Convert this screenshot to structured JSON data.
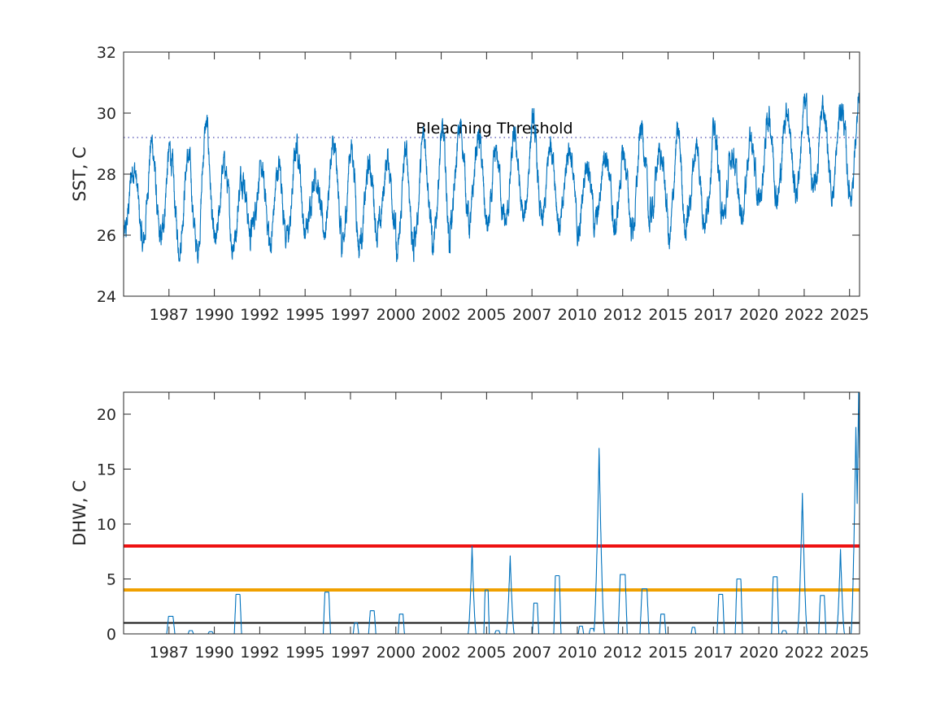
{
  "chart_data": [
    {
      "type": "line",
      "ylabel": "SST, C",
      "xlabel": "",
      "xlim": [
        1984.6,
        2025.15
      ],
      "ylim": [
        24,
        32
      ],
      "yticks": [
        24,
        26,
        28,
        30,
        32
      ],
      "xticks": [
        1987,
        1990,
        1992,
        1995,
        1997,
        2000,
        2002,
        2005,
        2007,
        2010,
        2012,
        2015,
        2017,
        2020,
        2022,
        2025
      ],
      "xtick_positions": [
        1987.1,
        1989.6,
        1992.1,
        1994.6,
        1997.1,
        1999.6,
        2002.1,
        2004.6,
        2007.1,
        2009.6,
        2012.1,
        2014.6,
        2017.1,
        2019.6,
        2022.1,
        2024.6
      ],
      "grid": false,
      "series_color": "#0072BD",
      "threshold": {
        "value": 29.2,
        "label": "Bleaching Threshold",
        "color": "#4a4ab0"
      },
      "annual_peaks": [
        28.6,
        29.5,
        29.1,
        28.9,
        30.1,
        28.7,
        28.4,
        28.4,
        28.6,
        29.4,
        28.4,
        29.2,
        29.4,
        28.6,
        28.8,
        29.1,
        29.6,
        29.8,
        29.9,
        29.6,
        28.9,
        29.5,
        30.1,
        29.4,
        29.3,
        28.9,
        29.2,
        28.9,
        29.9,
        29.0,
        29.7,
        29.2,
        29.8,
        29.1,
        29.5,
        30.3,
        30.6
      ],
      "annual_troughs": [
        25.6,
        25.1,
        25.4,
        25.2,
        24.9,
        25.2,
        25.5,
        25.9,
        25.3,
        25.5,
        25.8,
        25.8,
        24.9,
        25.6,
        25.8,
        24.7,
        25.6,
        24.9,
        26.2,
        25.9,
        25.9,
        26.0,
        26.0,
        25.9,
        25.9,
        25.7,
        26.1,
        25.8,
        25.8,
        26.4,
        25.3,
        26.2,
        26.1,
        26.2,
        26.4,
        26.8,
        27.0
      ]
    },
    {
      "type": "line",
      "ylabel": "DHW, C",
      "xlabel": "",
      "xlim": [
        1984.6,
        2025.15
      ],
      "ylim": [
        0,
        22
      ],
      "yticks": [
        0,
        5,
        10,
        15,
        20
      ],
      "xticks": [
        1987,
        1990,
        1992,
        1995,
        1997,
        2000,
        2002,
        2005,
        2007,
        2010,
        2012,
        2015,
        2017,
        2020,
        2022,
        2025
      ],
      "xtick_positions": [
        1987.1,
        1989.6,
        1992.1,
        1994.6,
        1997.1,
        1999.6,
        2002.1,
        2004.6,
        2007.1,
        2009.6,
        2012.1,
        2014.6,
        2017.1,
        2019.6,
        2022.1,
        2024.6
      ],
      "grid": false,
      "series_color": "#0072BD",
      "reference_lines": [
        {
          "value": 8,
          "color": "#ee1111"
        },
        {
          "value": 4,
          "color": "#f0a000"
        },
        {
          "value": 1,
          "color": "#111111"
        }
      ],
      "events": [
        {
          "x": 1987.2,
          "peak": 1.6,
          "width": 0.45
        },
        {
          "x": 1988.3,
          "peak": 0.3,
          "width": 0.3
        },
        {
          "x": 1989.4,
          "peak": 0.2,
          "width": 0.3
        },
        {
          "x": 1990.9,
          "peak": 3.6,
          "width": 0.4
        },
        {
          "x": 1995.8,
          "peak": 3.8,
          "width": 0.4
        },
        {
          "x": 1997.4,
          "peak": 1.0,
          "width": 0.3
        },
        {
          "x": 1998.3,
          "peak": 2.1,
          "width": 0.4
        },
        {
          "x": 1999.9,
          "peak": 1.8,
          "width": 0.35
        },
        {
          "x": 2003.8,
          "peak": 8.0,
          "width": 0.45
        },
        {
          "x": 2004.6,
          "peak": 4.0,
          "width": 0.3
        },
        {
          "x": 2005.2,
          "peak": 0.3,
          "width": 0.3
        },
        {
          "x": 2005.9,
          "peak": 7.1,
          "width": 0.45
        },
        {
          "x": 2007.3,
          "peak": 2.8,
          "width": 0.35
        },
        {
          "x": 2008.5,
          "peak": 5.3,
          "width": 0.4
        },
        {
          "x": 2009.8,
          "peak": 0.7,
          "width": 0.3
        },
        {
          "x": 2010.4,
          "peak": 0.5,
          "width": 0.3
        },
        {
          "x": 2010.8,
          "peak": 16.9,
          "width": 0.6
        },
        {
          "x": 2012.1,
          "peak": 5.4,
          "width": 0.5
        },
        {
          "x": 2013.3,
          "peak": 4.1,
          "width": 0.5
        },
        {
          "x": 2014.3,
          "peak": 1.8,
          "width": 0.35
        },
        {
          "x": 2016.0,
          "peak": 0.6,
          "width": 0.25
        },
        {
          "x": 2017.5,
          "peak": 3.6,
          "width": 0.4
        },
        {
          "x": 2018.5,
          "peak": 5.0,
          "width": 0.4
        },
        {
          "x": 2020.5,
          "peak": 5.2,
          "width": 0.4
        },
        {
          "x": 2021.0,
          "peak": 0.3,
          "width": 0.3
        },
        {
          "x": 2022.0,
          "peak": 12.8,
          "width": 0.55
        },
        {
          "x": 2023.1,
          "peak": 3.5,
          "width": 0.4
        },
        {
          "x": 2024.1,
          "peak": 7.7,
          "width": 0.45
        },
        {
          "x": 2024.95,
          "peak": 18.8,
          "width": 0.55
        },
        {
          "x": 2025.1,
          "peak": 22.0,
          "width": 0.5
        }
      ]
    }
  ]
}
